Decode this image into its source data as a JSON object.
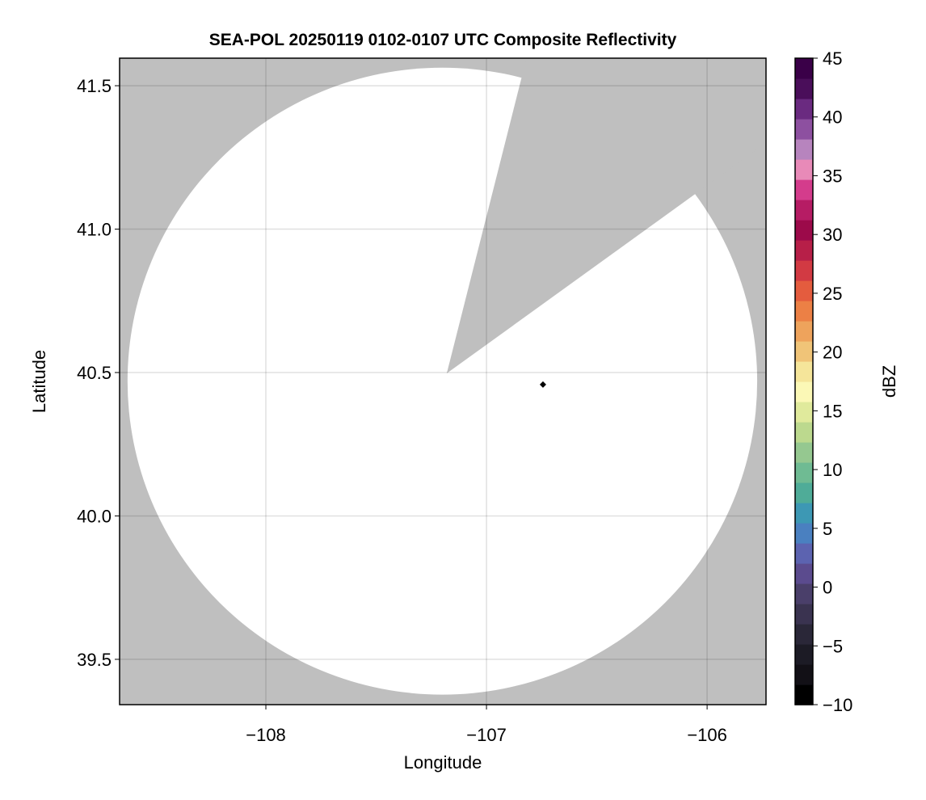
{
  "chart_data": {
    "type": "heatmap",
    "title": "SEA-POL 20250119 0102-0107 UTC Composite Reflectivity",
    "xlabel": "Longitude",
    "ylabel": "Latitude",
    "xlim": [
      -108.663,
      -105.733
    ],
    "ylim": [
      39.342,
      41.596
    ],
    "xticks": [
      -108,
      -107,
      -106
    ],
    "xtick_labels": [
      "−108",
      "−107",
      "−106"
    ],
    "yticks": [
      39.5,
      40.0,
      40.5,
      41.0,
      41.5
    ],
    "ytick_labels": [
      "39.5",
      "40.0",
      "40.5",
      "41.0",
      "41.5"
    ],
    "grid": true,
    "background_color": "#bfbfbf",
    "coverage_area_color": "#ffffff",
    "coverage_circle": {
      "center_lon": -107.2,
      "center_lat": 40.47,
      "radius_lon_deg": 1.427,
      "radius_lat_deg": 1.093
    },
    "blocked_sector": {
      "apex": [
        -107.18,
        40.497
      ],
      "edge1": [
        -106.842,
        41.525
      ],
      "edge2": [
        -106.062,
        41.118
      ]
    },
    "marker": {
      "lon": -106.744,
      "lat": 40.458,
      "shape": "diamond",
      "color": "#000000"
    },
    "colorbar": {
      "label": "dBZ",
      "range": [
        -10,
        45
      ],
      "ticks": [
        -10,
        -5,
        0,
        5,
        10,
        15,
        20,
        25,
        30,
        35,
        40,
        45
      ],
      "tick_labels": [
        "−10",
        "−5",
        "0",
        "5",
        "10",
        "15",
        "20",
        "25",
        "30",
        "35",
        "40",
        "45"
      ],
      "colors": [
        "#000000",
        "#121016",
        "#1c1b25",
        "#2a2738",
        "#3a3350",
        "#4a3f6a",
        "#5b4b8e",
        "#5c63b0",
        "#4a80c0",
        "#3d98b4",
        "#4fac98",
        "#6fbb93",
        "#95c890",
        "#bcd98e",
        "#e0ea9c",
        "#fbf8b6",
        "#f5e59a",
        "#f0c478",
        "#eea35c",
        "#ec8045",
        "#e45c3e",
        "#d23a43",
        "#b71f48",
        "#9c0a4a",
        "#b61c64",
        "#d43c8c",
        "#e88ab8",
        "#b784be",
        "#8d50a0",
        "#6a2a80",
        "#4a0e5a",
        "#3a0048"
      ]
    }
  }
}
